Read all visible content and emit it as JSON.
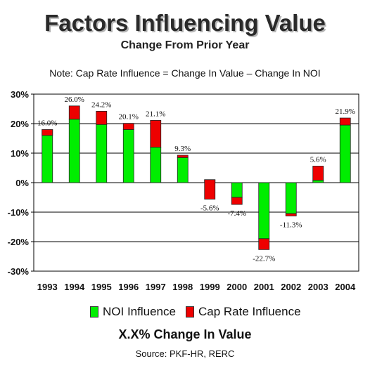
{
  "header": {
    "title": "Factors Influencing Value",
    "subtitle": "Change From Prior Year",
    "note": "Note: Cap Rate Influence = Change In Value – Change In NOI"
  },
  "footer": {
    "caption": "X.X% Change In Value",
    "source": "Source: PKF-HR, RERC"
  },
  "colors": {
    "noi": "#00ee00",
    "cap": "#ee0000",
    "grid": "#000000"
  },
  "chart_data": {
    "type": "bar",
    "stacked": true,
    "categories": [
      "1993",
      "1994",
      "1995",
      "1996",
      "1997",
      "1998",
      "1999",
      "2000",
      "2001",
      "2002",
      "2003",
      "2004"
    ],
    "series": [
      {
        "name": "NOI Influence",
        "values": [
          18.0,
          21.5,
          19.7,
          18.0,
          12.0,
          8.5,
          1.0,
          -5.0,
          -19.0,
          -10.5,
          0.8,
          19.5
        ]
      },
      {
        "name": "Cap Rate Influence",
        "values": [
          -2.0,
          4.5,
          4.5,
          2.1,
          9.1,
          0.8,
          -6.6,
          -2.4,
          -3.7,
          -0.8,
          4.8,
          2.4
        ]
      }
    ],
    "total_labels": [
      "16.0%",
      "26.0%",
      "24.2%",
      "20.1%",
      "21.1%",
      "9.3%",
      "-5.6%",
      "-7.4%",
      "-22.7%",
      "-11.3%",
      "5.6%",
      "21.9%"
    ],
    "totals": [
      16.0,
      26.0,
      24.2,
      20.1,
      21.1,
      9.3,
      -5.6,
      -7.4,
      -22.7,
      -11.3,
      5.6,
      21.9
    ],
    "ylim": [
      -30,
      30
    ],
    "yticks": [
      30,
      20,
      10,
      0,
      -10,
      -20,
      -30
    ],
    "ytick_labels": [
      "30%",
      "20%",
      "10%",
      "0%",
      "-10%",
      "-20%",
      "-30%"
    ],
    "grid": true,
    "legend_position": "bottom"
  }
}
